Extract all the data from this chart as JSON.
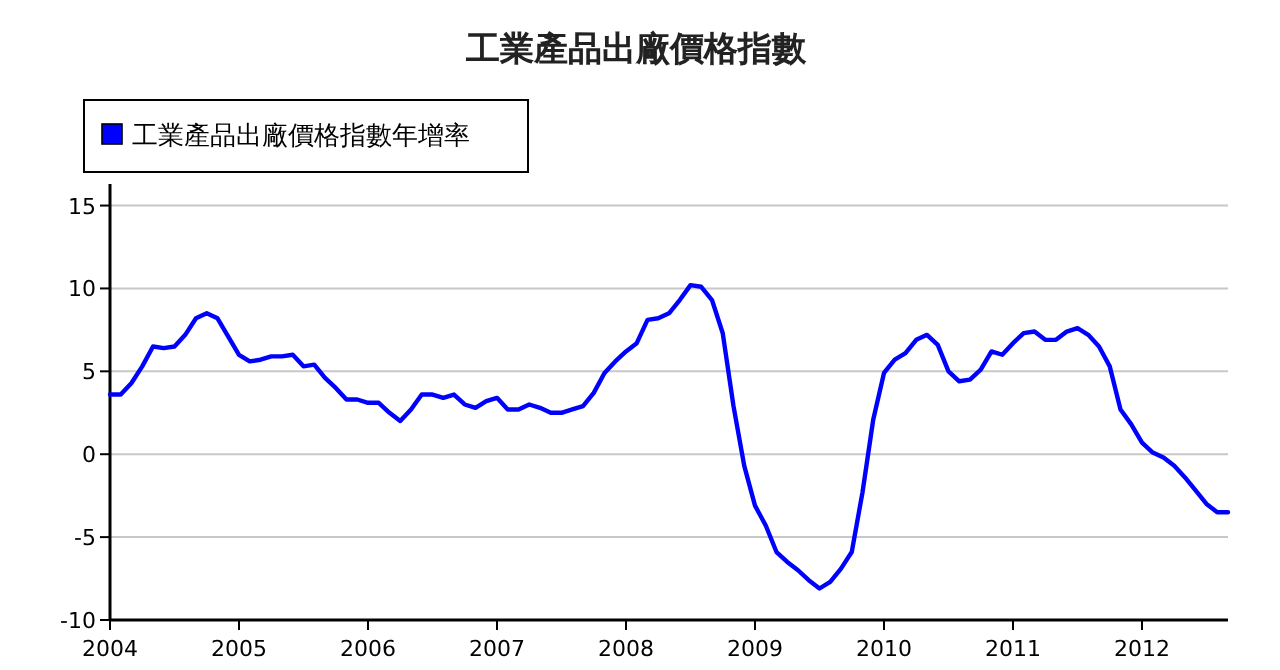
{
  "chart_data": {
    "type": "line",
    "title": "工業產品出廠價格指數",
    "legend": "top left",
    "grid": "y",
    "line_style": "solid",
    "marker": "none",
    "x": [
      "2004-01",
      "2004-02",
      "2004-03",
      "2004-04",
      "2004-05",
      "2004-06",
      "2004-07",
      "2004-08",
      "2004-09",
      "2004-10",
      "2004-11",
      "2004-12",
      "2005-01",
      "2005-02",
      "2005-03",
      "2005-04",
      "2005-05",
      "2005-06",
      "2005-07",
      "2005-08",
      "2005-09",
      "2005-10",
      "2005-11",
      "2005-12",
      "2006-01",
      "2006-02",
      "2006-03",
      "2006-04",
      "2006-05",
      "2006-06",
      "2006-07",
      "2006-08",
      "2006-09",
      "2006-10",
      "2006-11",
      "2006-12",
      "2007-01",
      "2007-02",
      "2007-03",
      "2007-04",
      "2007-05",
      "2007-06",
      "2007-07",
      "2007-08",
      "2007-09",
      "2007-10",
      "2007-11",
      "2007-12",
      "2008-01",
      "2008-02",
      "2008-03",
      "2008-04",
      "2008-05",
      "2008-06",
      "2008-07",
      "2008-08",
      "2008-09",
      "2008-10",
      "2008-11",
      "2008-12",
      "2009-01",
      "2009-02",
      "2009-03",
      "2009-04",
      "2009-05",
      "2009-06",
      "2009-07",
      "2009-08",
      "2009-09",
      "2009-10",
      "2009-11",
      "2009-12",
      "2010-01",
      "2010-02",
      "2010-03",
      "2010-04",
      "2010-05",
      "2010-06",
      "2010-07",
      "2010-08",
      "2010-09",
      "2010-10",
      "2010-11",
      "2010-12",
      "2011-01",
      "2011-02",
      "2011-03",
      "2011-04",
      "2011-05",
      "2011-06",
      "2011-07",
      "2011-08",
      "2011-09",
      "2011-10",
      "2011-11",
      "2011-12",
      "2012-01",
      "2012-02",
      "2012-03",
      "2012-04",
      "2012-05",
      "2012-06",
      "2012-07",
      "2012-08",
      "2012-09"
    ],
    "series": [
      {
        "name": "工業產品出廠價格指數年增率",
        "color": "#0000ff",
        "values": [
          3.6,
          3.6,
          4.3,
          5.3,
          6.5,
          6.4,
          6.5,
          7.2,
          8.2,
          8.5,
          8.2,
          7.1,
          6.0,
          5.6,
          5.7,
          5.9,
          5.9,
          6.0,
          5.3,
          5.4,
          4.6,
          4.0,
          3.3,
          3.3,
          3.1,
          3.1,
          2.5,
          2.0,
          2.7,
          3.6,
          3.6,
          3.4,
          3.6,
          3.0,
          2.8,
          3.2,
          3.4,
          2.7,
          2.7,
          3.0,
          2.8,
          2.5,
          2.5,
          2.7,
          2.9,
          3.7,
          4.9,
          5.6,
          6.2,
          6.7,
          8.1,
          8.2,
          8.5,
          9.3,
          10.2,
          10.1,
          9.3,
          7.3,
          2.9,
          -0.7,
          -3.1,
          -4.3,
          -5.9,
          -6.5,
          -7.0,
          -7.6,
          -8.1,
          -7.7,
          -6.9,
          -5.9,
          -2.3,
          2.1,
          4.9,
          5.7,
          6.1,
          6.9,
          7.2,
          6.6,
          5.0,
          4.4,
          4.5,
          5.1,
          6.2,
          6.0,
          6.7,
          7.3,
          7.4,
          6.9,
          6.9,
          7.4,
          7.6,
          7.2,
          6.5,
          5.3,
          2.7,
          1.8,
          0.7,
          0.1,
          -0.2,
          -0.7,
          -1.4,
          -2.2,
          -3.0,
          -3.5,
          -3.5
        ]
      }
    ],
    "xlim": [
      "2004-01",
      "2012-09"
    ],
    "xticks": [
      {
        "value": "2004",
        "label": "2004"
      },
      {
        "value": "2005",
        "label": "2005"
      },
      {
        "value": "2006",
        "label": "2006"
      },
      {
        "value": "2007",
        "label": "2007"
      },
      {
        "value": "2008",
        "label": "2008"
      },
      {
        "value": "2009",
        "label": "2009"
      },
      {
        "value": "2010",
        "label": "2010"
      },
      {
        "value": "2011",
        "label": "2011"
      },
      {
        "value": "2012",
        "label": "2012"
      }
    ],
    "ylim": [
      -10,
      16.3
    ],
    "yticks": [
      -10,
      -5,
      0,
      5,
      10,
      15
    ]
  }
}
